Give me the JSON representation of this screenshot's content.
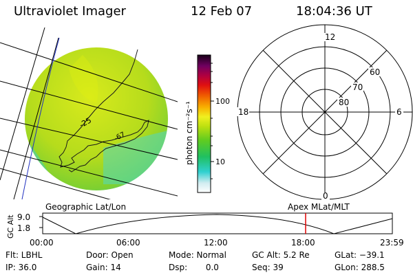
{
  "header": {
    "instrument": "Ultraviolet Imager",
    "date": "12 Feb 07",
    "time": "18:04:36 UT"
  },
  "colorbar": {
    "unit_label": "photon cm⁻²s⁻¹",
    "tick_100": "100",
    "tick_10": "10"
  },
  "polar_plot": {
    "mlt_top": "12",
    "mlt_bottom": "0",
    "mlt_left": "18",
    "mlt_right": "6",
    "lat_60": "60",
    "lat_70": "70",
    "lat_80": "80"
  },
  "image_labels": {
    "lat_contour_1": "-25",
    "lat_contour_2": "-67"
  },
  "orbit_panel": {
    "left_title": "Geographic Lat/Lon",
    "right_title": "Apex  MLat/MLT",
    "y_axis_label": "GC Alt",
    "y_max": "9.0",
    "y_min": "1.8",
    "x_ticks": [
      "00:00",
      "06:00",
      "12:00",
      "18:00",
      "23:59"
    ],
    "current_time_hours": 18.08
  },
  "status": {
    "filter": "Flt: LBHL",
    "door": "Door: Open",
    "mode": "Mode: Normal",
    "gc_alt": "GC Alt: 5.2 Re",
    "glat": "GLat: −39.1",
    "ip": "IP: 36.0",
    "gain": "Gain: 14",
    "dsp": "Dsp:       0.0",
    "seq": "Seq: 39",
    "glon": "GLon: 288.5"
  },
  "colors": {
    "marker": "#e00000",
    "coast": "#1a1a1a",
    "grid": "#000000",
    "limb": "#2030c0"
  }
}
